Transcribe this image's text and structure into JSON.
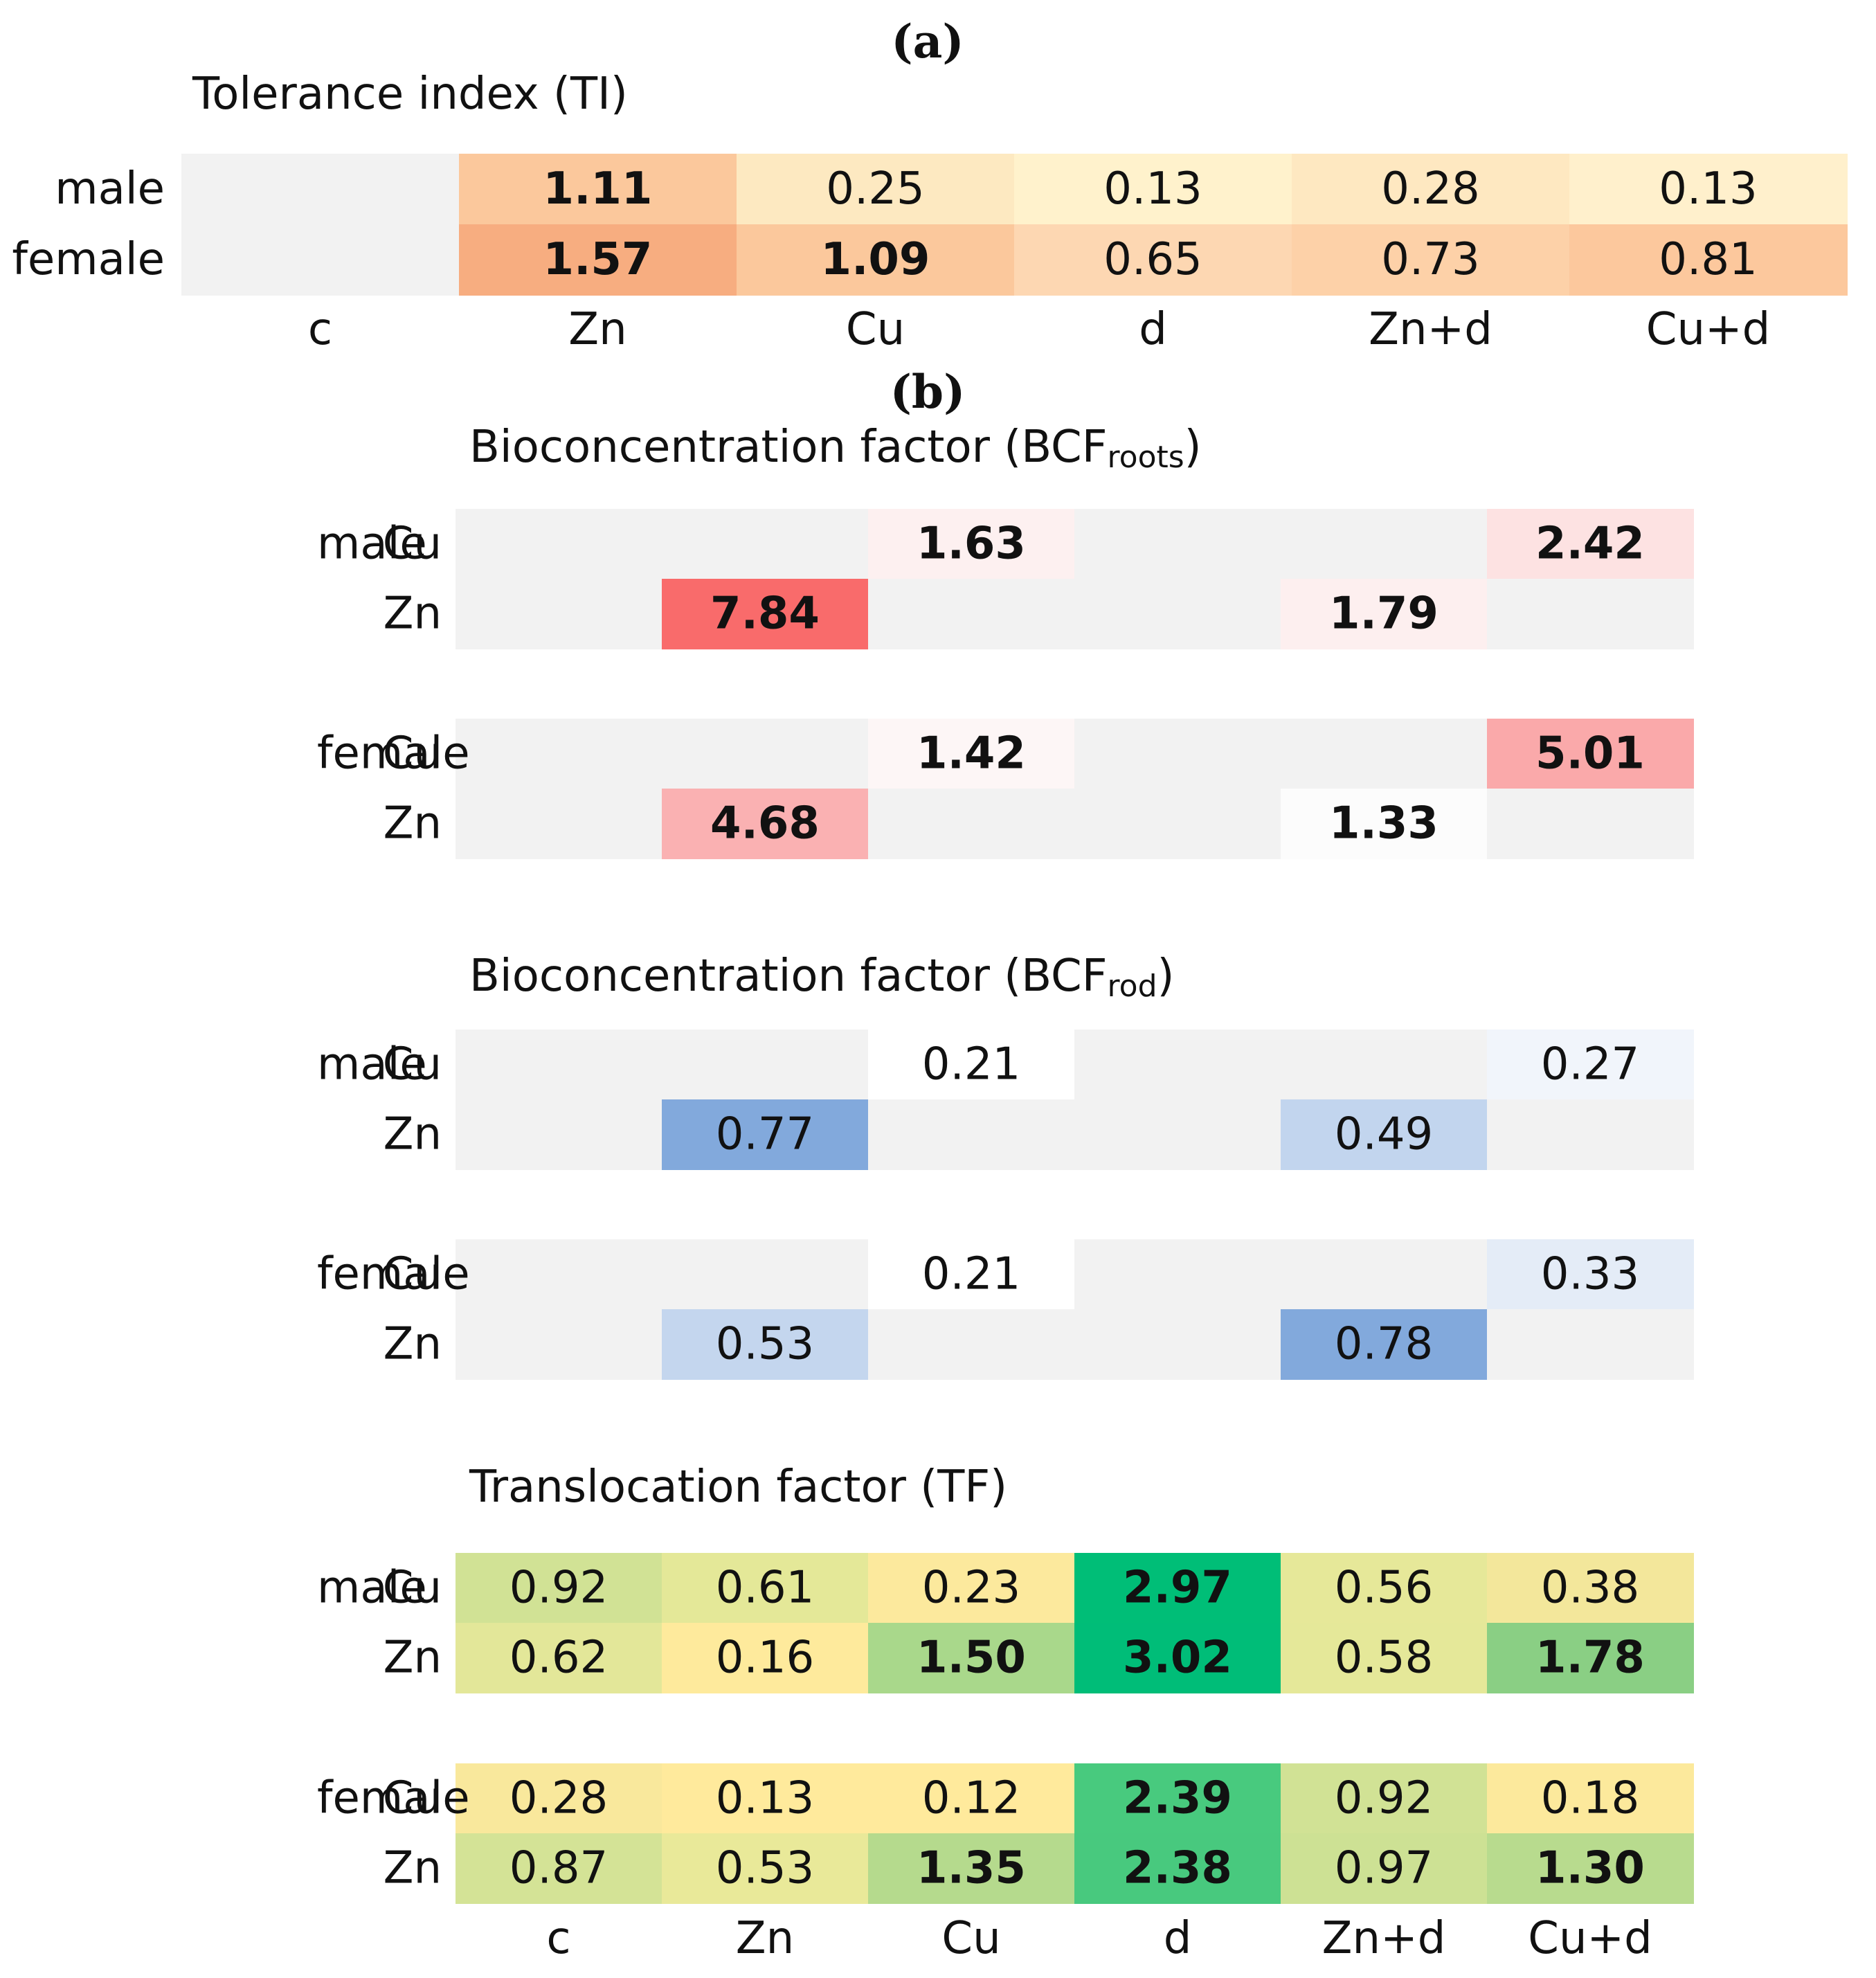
{
  "chart_data": [
    {
      "type": "heatmap",
      "panel_label": "(a)",
      "title": "Tolerance index (TI)",
      "columns": [
        "c",
        "Zn",
        "Cu",
        "d",
        "Zn+d",
        "Cu+d"
      ],
      "rows": [
        {
          "label": "male",
          "values": [
            null,
            "1.11",
            "0.25",
            "0.13",
            "0.28",
            "0.13"
          ],
          "bold": [
            false,
            true,
            false,
            false,
            false,
            false
          ]
        },
        {
          "label": "female",
          "values": [
            null,
            "1.57",
            "1.09",
            "0.65",
            "0.73",
            "0.81"
          ],
          "bold": [
            false,
            true,
            true,
            false,
            false,
            false
          ]
        }
      ],
      "colors": [
        "#f2f2f2",
        "#fbc89c",
        "#fde9c1",
        "#fff2cc",
        "#fee8c1",
        "#fff0cc",
        "#f7ad80",
        "#fbc89c",
        "#fdd7b2",
        "#fdd1a8",
        "#fcc89d"
      ]
    },
    {
      "type": "heatmap",
      "panel_label": "(b)",
      "title_main": "Bioconcentration factor (BCF",
      "title_sub": "roots",
      "title_end": ")",
      "columns": [
        "c",
        "Zn",
        "Cu",
        "d",
        "Zn+d",
        "Cu+d"
      ],
      "groups": [
        {
          "sex": "male",
          "rows": [
            {
              "metal": "Cu",
              "values": [
                null,
                null,
                "1.63",
                null,
                null,
                "2.42"
              ],
              "colors": [
                "#f2f2f2",
                "#f2f2f2",
                "#fdf0f0",
                "#f2f2f2",
                "#f2f2f2",
                "#fde2e2"
              ]
            },
            {
              "metal": "Zn",
              "values": [
                null,
                "7.84",
                null,
                null,
                "1.79",
                null
              ],
              "colors": [
                "#f2f2f2",
                "#f96b6b",
                "#f2f2f2",
                "#f2f2f2",
                "#fdefef",
                "#f2f2f2"
              ]
            }
          ]
        },
        {
          "sex": "female",
          "rows": [
            {
              "metal": "Cu",
              "values": [
                null,
                null,
                "1.42",
                null,
                null,
                "5.01"
              ],
              "colors": [
                "#f2f2f2",
                "#f2f2f2",
                "#fdf6f6",
                "#f2f2f2",
                "#f2f2f2",
                "#faa9aa"
              ]
            },
            {
              "metal": "Zn",
              "values": [
                null,
                "4.68",
                null,
                null,
                "1.33",
                null
              ],
              "colors": [
                "#f2f2f2",
                "#fab1b2",
                "#f2f2f2",
                "#f2f2f2",
                "#fcfcfc",
                "#f2f2f2"
              ]
            }
          ]
        }
      ],
      "bold": true
    },
    {
      "type": "heatmap",
      "title_main": "Bioconcentration factor (BCF",
      "title_sub": "rod",
      "title_end": ")",
      "columns": [
        "c",
        "Zn",
        "Cu",
        "d",
        "Zn+d",
        "Cu+d"
      ],
      "groups": [
        {
          "sex": "male",
          "rows": [
            {
              "metal": "Cu",
              "values": [
                null,
                null,
                "0.21",
                null,
                null,
                "0.27"
              ],
              "colors": [
                "#f2f2f2",
                "#f2f2f2",
                "#ffffff",
                "#f2f2f2",
                "#f2f2f2",
                "#f1f5fb"
              ]
            },
            {
              "metal": "Zn",
              "values": [
                null,
                "0.77",
                null,
                null,
                "0.49",
                null
              ],
              "colors": [
                "#f2f2f2",
                "#82a9dc",
                "#f2f2f2",
                "#f2f2f2",
                "#c2d5ee",
                "#f2f2f2"
              ]
            }
          ]
        },
        {
          "sex": "female",
          "rows": [
            {
              "metal": "Cu",
              "values": [
                null,
                null,
                "0.21",
                null,
                null,
                "0.33"
              ],
              "colors": [
                "#f2f2f2",
                "#f2f2f2",
                "#ffffff",
                "#f2f2f2",
                "#f2f2f2",
                "#e4ecf7"
              ]
            },
            {
              "metal": "Zn",
              "values": [
                null,
                "0.53",
                null,
                null,
                "0.78",
                null
              ],
              "colors": [
                "#f2f2f2",
                "#c4d6ee",
                "#f2f2f2",
                "#f2f2f2",
                "#82a9dc",
                "#f2f2f2"
              ]
            }
          ]
        }
      ],
      "bold": false
    },
    {
      "type": "heatmap",
      "title": "Translocation factor (TF)",
      "columns": [
        "c",
        "Zn",
        "Cu",
        "d",
        "Zn+d",
        "Cu+d"
      ],
      "groups": [
        {
          "sex": "male",
          "rows": [
            {
              "metal": "Cu",
              "values": [
                "0.92",
                "0.61",
                "0.23",
                "2.97",
                "0.56",
                "0.38"
              ],
              "bold": [
                false,
                false,
                false,
                true,
                false,
                false
              ],
              "colors": [
                "#d1e295",
                "#e4e898",
                "#fce99d",
                "#00be77",
                "#e6e899",
                "#f3e79b"
              ]
            },
            {
              "metal": "Zn",
              "values": [
                "0.62",
                "0.16",
                "1.50",
                "3.02",
                "0.58",
                "1.78"
              ],
              "bold": [
                false,
                false,
                true,
                true,
                false,
                true
              ],
              "colors": [
                "#e3e799",
                "#feea9c",
                "#a9d88b",
                "#00bd78",
                "#e5e899",
                "#8acf84"
              ]
            }
          ]
        },
        {
          "sex": "female",
          "rows": [
            {
              "metal": "Cu",
              "values": [
                "0.28",
                "0.13",
                "0.12",
                "2.39",
                "0.92",
                "0.18"
              ],
              "bold": [
                false,
                false,
                false,
                true,
                false,
                false
              ],
              "colors": [
                "#f9e89c",
                "#ffea9c",
                "#ffea9c",
                "#48ca7e",
                "#d1e295",
                "#fce99c"
              ]
            },
            {
              "metal": "Zn",
              "values": [
                "0.87",
                "0.53",
                "1.35",
                "2.38",
                "0.97",
                "1.30"
              ],
              "bold": [
                false,
                false,
                true,
                true,
                false,
                true
              ],
              "colors": [
                "#d4e396",
                "#e9e999",
                "#b5da8d",
                "#48c97e",
                "#cde194",
                "#b8db8e"
              ]
            }
          ]
        }
      ],
      "x_tick_labels": [
        "c",
        "Zn",
        "Cu",
        "d",
        "Zn+d",
        "Cu+d"
      ]
    }
  ]
}
